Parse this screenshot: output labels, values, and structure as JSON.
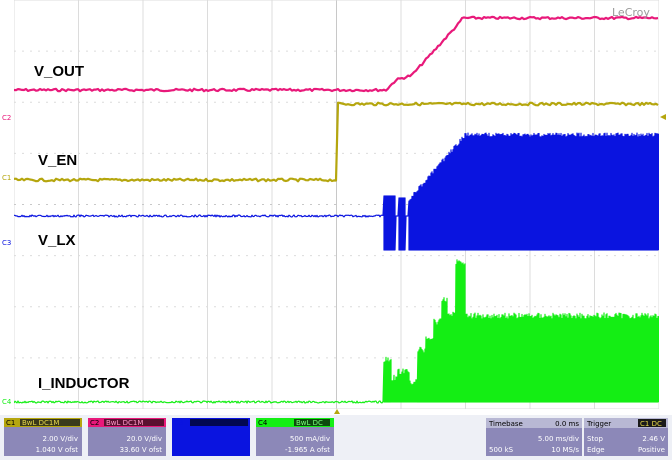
{
  "brand": "LeCroy",
  "channels": [
    {
      "id": "C1",
      "name": "V_EN",
      "color": "#b5a60e",
      "coupling": "BwL DC1M",
      "scale": "2.00 V/div",
      "offset": "1.040 V ofst"
    },
    {
      "id": "C2",
      "name": "V_OUT",
      "color": "#e8197a",
      "coupling": "BwL DC1M",
      "scale": "20.0 V/div",
      "offset": "33.60 V ofst"
    },
    {
      "id": "C3",
      "name": "V_LX",
      "color": "#0a14e0",
      "coupling": "",
      "scale": "",
      "offset": ""
    },
    {
      "id": "C4",
      "name": "I_INDUCTOR",
      "color": "#14ee14",
      "coupling": "BwL DC",
      "scale": "500 mA/div",
      "offset": "-1.965 A ofst"
    }
  ],
  "timebase": {
    "label": "Timebase",
    "delay": "0.0 ms",
    "scale": "5.00 ms/div",
    "samples": "500 kS",
    "rate": "10 MS/s"
  },
  "trigger": {
    "label": "Trigger",
    "badge": "C1 DC",
    "mode": "Stop",
    "level": "2.46 V",
    "type": "Edge",
    "slope": "Positive"
  },
  "ch_markers": {
    "c1": "C1",
    "c2": "C2",
    "c3": "C3",
    "c4": "C4"
  }
}
